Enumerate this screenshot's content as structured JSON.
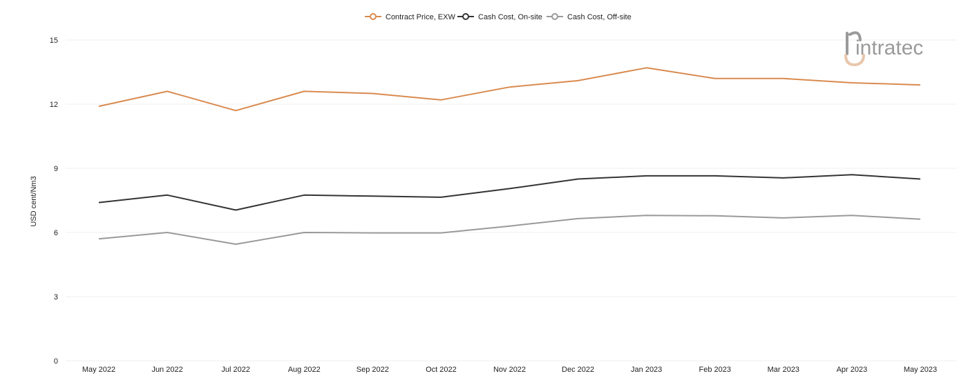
{
  "chart_data": {
    "type": "line",
    "title": "",
    "xlabel": "",
    "ylabel": "USD cent/Nm3",
    "categories": [
      "May 2022",
      "Jun 2022",
      "Jul 2022",
      "Aug 2022",
      "Sep 2022",
      "Oct 2022",
      "Nov 2022",
      "Dec 2022",
      "Jan 2023",
      "Feb 2023",
      "Mar 2023",
      "Apr 2023",
      "May 2023"
    ],
    "yticks": [
      "0",
      "3",
      "6",
      "9",
      "12",
      "15"
    ],
    "ylim": [
      0,
      15
    ],
    "grid": true,
    "legend_position": "top-center",
    "series": [
      {
        "name": "Contract Price, EXW",
        "color": "#d98a4e",
        "values": [
          11.9,
          12.6,
          11.7,
          12.6,
          12.5,
          12.2,
          12.8,
          13.1,
          13.7,
          13.2,
          13.2,
          13.0,
          12.9
        ]
      },
      {
        "name": "Cash Cost, On-site",
        "color": "#333333",
        "values": [
          7.4,
          7.75,
          7.05,
          7.75,
          7.7,
          7.65,
          8.05,
          8.5,
          8.65,
          8.65,
          8.55,
          8.7,
          8.5
        ]
      },
      {
        "name": "Cash Cost, Off-site",
        "color": "#999999",
        "values": [
          5.7,
          6.0,
          5.45,
          6.0,
          5.98,
          5.98,
          6.3,
          6.65,
          6.8,
          6.78,
          6.68,
          6.8,
          6.62
        ]
      }
    ]
  },
  "logo": {
    "text": "intratec",
    "icon": "intratec-logo-icon",
    "color": "#9a9a9a",
    "accent": "#e8c7ad"
  }
}
